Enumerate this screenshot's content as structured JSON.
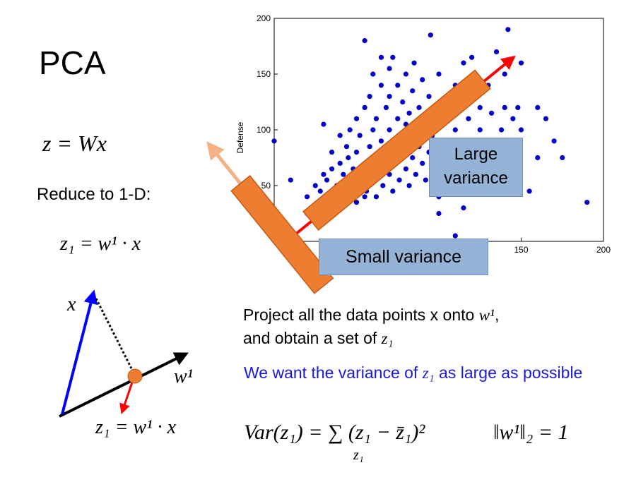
{
  "title": "PCA",
  "eq_main": "z = Wx",
  "reduce_label": "Reduce to 1-D:",
  "eq_z1": "z₁ = w¹ · x",
  "diagram": {
    "x_label": "x",
    "w_label": "w¹",
    "eq_proj": "z₁ = w¹ · x"
  },
  "project_text": {
    "line1_prefix": "Project all the data points x onto ",
    "line1_w": "w¹",
    "line1_end": ",",
    "line2_prefix": "and obtain a set of ",
    "line2_z": "z₁"
  },
  "blue_text": {
    "prefix": "We want the variance of ",
    "z": "z₁",
    "suffix": " as large as possible"
  },
  "var_eq": "Var(z₁) = ∑ (z₁ − z̄₁)²",
  "var_sub": "z₁",
  "norm_eq": "‖w¹‖₂ = 1",
  "large_variance": {
    "line1": "Large",
    "line2": "variance"
  },
  "small_variance": "Small variance",
  "colors": {
    "points": "#0000c8",
    "bar": "#ed7d31",
    "red_arrow": "#ff0000",
    "light_arrow": "#f4b183",
    "box": "#95b3d7",
    "blue_text": "#1a1adb"
  },
  "chart_data": {
    "type": "scatter",
    "ylabel": "Defense",
    "xlabel": "",
    "xlim": [
      0,
      200
    ],
    "ylim": [
      0,
      200
    ],
    "xticks": [
      "150",
      "200"
    ],
    "yticks": [
      "50",
      "100",
      "150",
      "200"
    ],
    "points": [
      [
        0,
        90
      ],
      [
        10,
        55
      ],
      [
        20,
        40
      ],
      [
        20,
        25
      ],
      [
        25,
        50
      ],
      [
        25,
        30
      ],
      [
        28,
        45
      ],
      [
        30,
        35
      ],
      [
        30,
        60
      ],
      [
        30,
        105
      ],
      [
        32,
        55
      ],
      [
        35,
        40
      ],
      [
        35,
        65
      ],
      [
        35,
        80
      ],
      [
        38,
        50
      ],
      [
        40,
        30
      ],
      [
        40,
        45
      ],
      [
        40,
        70
      ],
      [
        40,
        95
      ],
      [
        42,
        60
      ],
      [
        44,
        85
      ],
      [
        45,
        40
      ],
      [
        45,
        55
      ],
      [
        45,
        75
      ],
      [
        46,
        100
      ],
      [
        48,
        65
      ],
      [
        50,
        35
      ],
      [
        50,
        50
      ],
      [
        50,
        80
      ],
      [
        50,
        110
      ],
      [
        52,
        95
      ],
      [
        54,
        60
      ],
      [
        55,
        40
      ],
      [
        55,
        70
      ],
      [
        55,
        120
      ],
      [
        55,
        180
      ],
      [
        56,
        45
      ],
      [
        58,
        85
      ],
      [
        58,
        130
      ],
      [
        60,
        55
      ],
      [
        60,
        75
      ],
      [
        60,
        100
      ],
      [
        60,
        150
      ],
      [
        62,
        40
      ],
      [
        62,
        110
      ],
      [
        64,
        65
      ],
      [
        65,
        90
      ],
      [
        65,
        140
      ],
      [
        65,
        165
      ],
      [
        66,
        50
      ],
      [
        68,
        80
      ],
      [
        68,
        120
      ],
      [
        70,
        60
      ],
      [
        70,
        100
      ],
      [
        70,
        130
      ],
      [
        70,
        155
      ],
      [
        72,
        45
      ],
      [
        72,
        85
      ],
      [
        72,
        165
      ],
      [
        74,
        70
      ],
      [
        75,
        110
      ],
      [
        75,
        140
      ],
      [
        76,
        55
      ],
      [
        78,
        95
      ],
      [
        78,
        125
      ],
      [
        80,
        65
      ],
      [
        80,
        85
      ],
      [
        80,
        105
      ],
      [
        80,
        150
      ],
      [
        82,
        50
      ],
      [
        82,
        115
      ],
      [
        84,
        75
      ],
      [
        84,
        135
      ],
      [
        85,
        95
      ],
      [
        85,
        160
      ],
      [
        86,
        60
      ],
      [
        88,
        85
      ],
      [
        88,
        120
      ],
      [
        90,
        70
      ],
      [
        90,
        100
      ],
      [
        90,
        145
      ],
      [
        92,
        55
      ],
      [
        92,
        110
      ],
      [
        94,
        80
      ],
      [
        94,
        130
      ],
      [
        95,
        185
      ],
      [
        96,
        65
      ],
      [
        96,
        95
      ],
      [
        98,
        120
      ],
      [
        100,
        75
      ],
      [
        100,
        105
      ],
      [
        100,
        150
      ],
      [
        100,
        40
      ],
      [
        102,
        60
      ],
      [
        104,
        90
      ],
      [
        105,
        130
      ],
      [
        106,
        110
      ],
      [
        108,
        80
      ],
      [
        110,
        65
      ],
      [
        110,
        140
      ],
      [
        110,
        100
      ],
      [
        112,
        120
      ],
      [
        115,
        85
      ],
      [
        115,
        160
      ],
      [
        115,
        30
      ],
      [
        118,
        110
      ],
      [
        120,
        70
      ],
      [
        120,
        135
      ],
      [
        120,
        165
      ],
      [
        122,
        150
      ],
      [
        125,
        100
      ],
      [
        125,
        120
      ],
      [
        128,
        60
      ],
      [
        130,
        85
      ],
      [
        130,
        140
      ],
      [
        132,
        115
      ],
      [
        135,
        170
      ],
      [
        138,
        100
      ],
      [
        140,
        75
      ],
      [
        140,
        120
      ],
      [
        140,
        150
      ],
      [
        142,
        190
      ],
      [
        145,
        110
      ],
      [
        148,
        120
      ],
      [
        150,
        100
      ],
      [
        150,
        160
      ],
      [
        155,
        45
      ],
      [
        160,
        120
      ],
      [
        160,
        75
      ],
      [
        165,
        110
      ],
      [
        170,
        90
      ],
      [
        175,
        75
      ],
      [
        190,
        35
      ],
      [
        110,
        5
      ],
      [
        140,
        45
      ],
      [
        100,
        25
      ]
    ]
  }
}
